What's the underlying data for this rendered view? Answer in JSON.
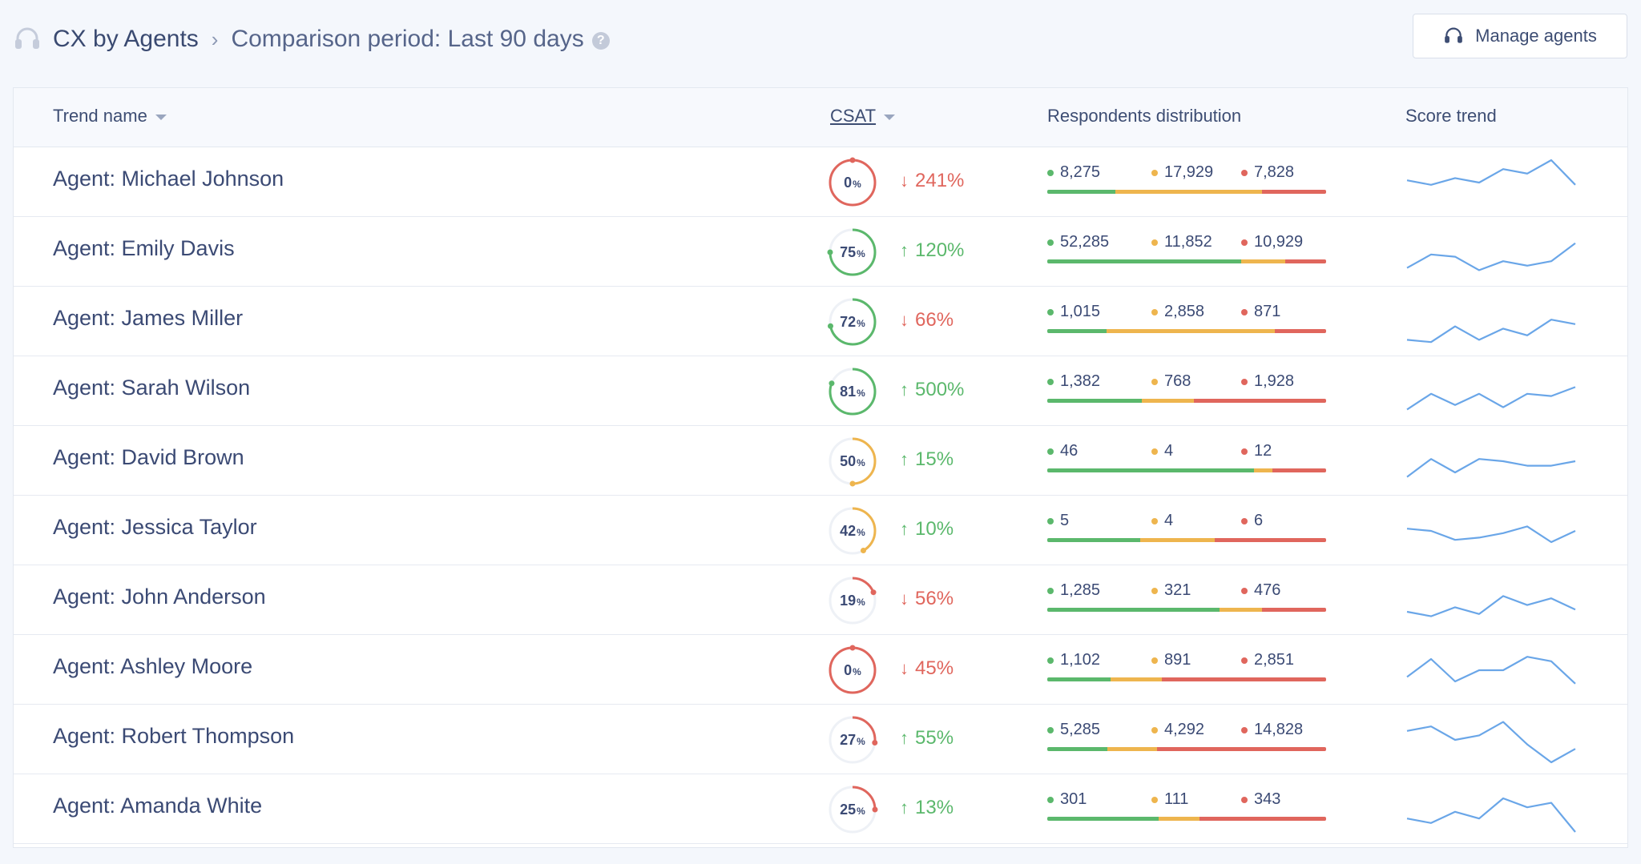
{
  "header": {
    "title": "CX by Agents",
    "separator": "›",
    "period_label": "Comparison period: Last 90 days",
    "help": "?",
    "manage_button": "Manage agents"
  },
  "table": {
    "columns": {
      "trend_name": "Trend name",
      "csat": "CSAT",
      "distribution": "Respondents distribution",
      "score_trend": "Score trend"
    },
    "rows": [
      {
        "name": "Agent: Michael Johnson",
        "csat": "0",
        "csat_value": 0,
        "pct_sign": "%",
        "change": "241%",
        "direction": "down",
        "arrow": "↓",
        "pos_label": "8,275",
        "neu_label": "17,929",
        "neg_label": "7,828",
        "pos": 8275,
        "neu": 17929,
        "neg": 7828,
        "trend": [
          0.55,
          0.45,
          0.6,
          0.5,
          0.8,
          0.7,
          1.0,
          0.45
        ]
      },
      {
        "name": "Agent: Emily Davis",
        "csat": "75",
        "csat_value": 75,
        "pct_sign": "%",
        "change": "120%",
        "direction": "up",
        "arrow": "↑",
        "pos_label": "52,285",
        "neu_label": "11,852",
        "neg_label": "10,929",
        "pos": 52285,
        "neu": 11852,
        "neg": 10929,
        "trend": [
          0.15,
          0.45,
          0.4,
          0.1,
          0.3,
          0.2,
          0.3,
          0.7
        ]
      },
      {
        "name": "Agent: James Miller",
        "csat": "72",
        "csat_value": 72,
        "pct_sign": "%",
        "change": "66%",
        "direction": "down",
        "arrow": "↓",
        "pos_label": "1,015",
        "neu_label": "2,858",
        "neg_label": "871",
        "pos": 1015,
        "neu": 2858,
        "neg": 871,
        "trend": [
          0.1,
          0.05,
          0.4,
          0.1,
          0.35,
          0.2,
          0.55,
          0.45
        ]
      },
      {
        "name": "Agent: Sarah Wilson",
        "csat": "81",
        "csat_value": 81,
        "pct_sign": "%",
        "change": "500%",
        "direction": "up",
        "arrow": "↑",
        "pos_label": "1,382",
        "neu_label": "768",
        "neg_label": "1,928",
        "pos": 1382,
        "neu": 768,
        "neg": 1928,
        "trend": [
          0.1,
          0.45,
          0.2,
          0.45,
          0.15,
          0.45,
          0.4,
          0.6
        ]
      },
      {
        "name": "Agent: David Brown",
        "csat": "50",
        "csat_value": 50,
        "pct_sign": "%",
        "change": "15%",
        "direction": "up",
        "arrow": "↑",
        "pos_label": "46",
        "neu_label": "4",
        "neg_label": "12",
        "pos": 46,
        "neu": 4,
        "neg": 12,
        "trend": [
          0.15,
          0.55,
          0.25,
          0.55,
          0.5,
          0.4,
          0.4,
          0.5
        ]
      },
      {
        "name": "Agent: Jessica Taylor",
        "csat": "42",
        "csat_value": 42,
        "pct_sign": "%",
        "change": "10%",
        "direction": "up",
        "arrow": "↑",
        "pos_label": "5",
        "neu_label": "4",
        "neg_label": "6",
        "pos": 5,
        "neu": 4,
        "neg": 6,
        "trend": [
          0.55,
          0.5,
          0.3,
          0.35,
          0.45,
          0.6,
          0.25,
          0.5
        ]
      },
      {
        "name": "Agent: John Anderson",
        "csat": "19",
        "csat_value": 19,
        "pct_sign": "%",
        "change": "56%",
        "direction": "down",
        "arrow": "↓",
        "pos_label": "1,285",
        "neu_label": "321",
        "neg_label": "476",
        "pos": 1285,
        "neu": 321,
        "neg": 476,
        "trend": [
          0.25,
          0.15,
          0.35,
          0.2,
          0.6,
          0.4,
          0.55,
          0.3
        ]
      },
      {
        "name": "Agent: Ashley Moore",
        "csat": "0",
        "csat_value": 0,
        "pct_sign": "%",
        "change": "45%",
        "direction": "down",
        "arrow": "↓",
        "pos_label": "1,102",
        "neu_label": "891",
        "neg_label": "2,851",
        "pos": 1102,
        "neu": 891,
        "neg": 2851,
        "trend": [
          0.35,
          0.75,
          0.25,
          0.5,
          0.5,
          0.8,
          0.7,
          0.2
        ]
      },
      {
        "name": "Agent: Robert Thompson",
        "csat": "27",
        "csat_value": 27,
        "pct_sign": "%",
        "change": "55%",
        "direction": "up",
        "arrow": "↑",
        "pos_label": "5,285",
        "neu_label": "4,292",
        "neg_label": "14,828",
        "pos": 5285,
        "neu": 4292,
        "neg": 14828,
        "trend": [
          0.7,
          0.8,
          0.5,
          0.6,
          0.9,
          0.4,
          0.0,
          0.3
        ]
      },
      {
        "name": "Agent: Amanda White",
        "csat": "25",
        "csat_value": 25,
        "pct_sign": "%",
        "change": "13%",
        "direction": "up",
        "arrow": "↑",
        "pos_label": "301",
        "neu_label": "111",
        "neg_label": "343",
        "pos": 301,
        "neu": 111,
        "neg": 343,
        "trend": [
          0.3,
          0.2,
          0.45,
          0.3,
          0.75,
          0.55,
          0.65,
          0.0
        ]
      }
    ]
  },
  "colors": {
    "positive": "#5bb86c",
    "neutral": "#eeb54e",
    "negative": "#e0665d",
    "trend_line": "#6aa6e8",
    "track": "#eef1f6"
  },
  "icons": {
    "headset": "headset-icon",
    "caret": "caret-down-icon",
    "help": "help-icon"
  }
}
